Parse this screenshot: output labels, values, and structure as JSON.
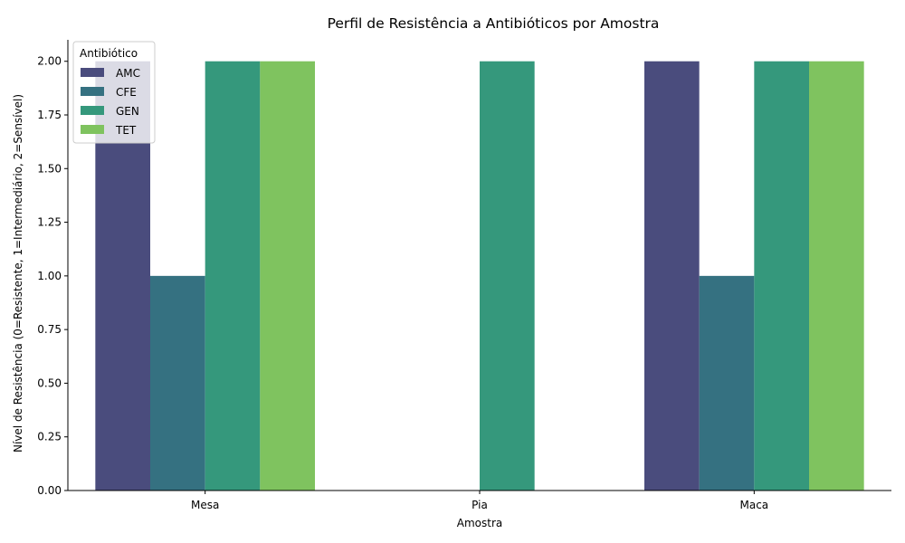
{
  "chart_data": {
    "type": "bar",
    "title": "Perfil de Resistência a Antibióticos por Amostra",
    "xlabel": "Amostra",
    "ylabel": "Nível de Resistência (0=Resistente, 1=Intermediário, 2=Sensível)",
    "categories": [
      "Mesa",
      "Pia",
      "Maca"
    ],
    "ylim": [
      0,
      2.1
    ],
    "yticks": [
      "0.00",
      "0.25",
      "0.50",
      "0.75",
      "1.00",
      "1.25",
      "1.50",
      "1.75",
      "2.00"
    ],
    "grid": false,
    "legend": {
      "title": "Antibiótico",
      "placement": "top-left"
    },
    "series": [
      {
        "name": "AMC",
        "color": "#4a4c7d",
        "values": [
          2,
          null,
          2
        ]
      },
      {
        "name": "CFE",
        "color": "#357181",
        "values": [
          1,
          null,
          1
        ]
      },
      {
        "name": "GEN",
        "color": "#35987c",
        "values": [
          2,
          2,
          2
        ]
      },
      {
        "name": "TET",
        "color": "#7fc35f",
        "values": [
          2,
          null,
          2
        ]
      }
    ]
  }
}
